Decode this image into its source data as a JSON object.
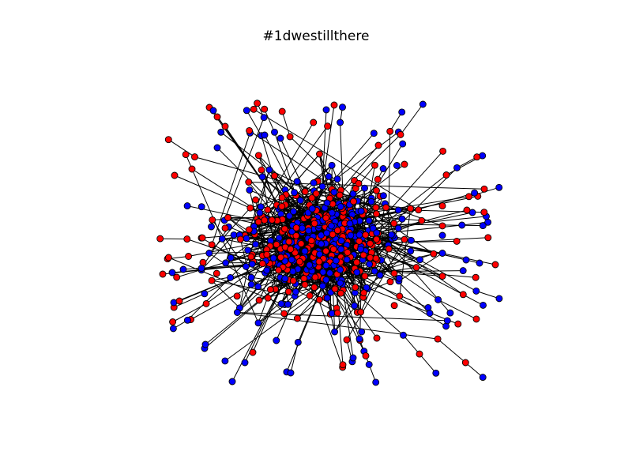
{
  "figure": {
    "title": "#1dwestillthere"
  },
  "network": {
    "node_colors": [
      "#ff0000",
      "#0000ff"
    ],
    "node_stroke": "#000000",
    "edge_color": "#000000",
    "background": "#ffffff"
  }
}
